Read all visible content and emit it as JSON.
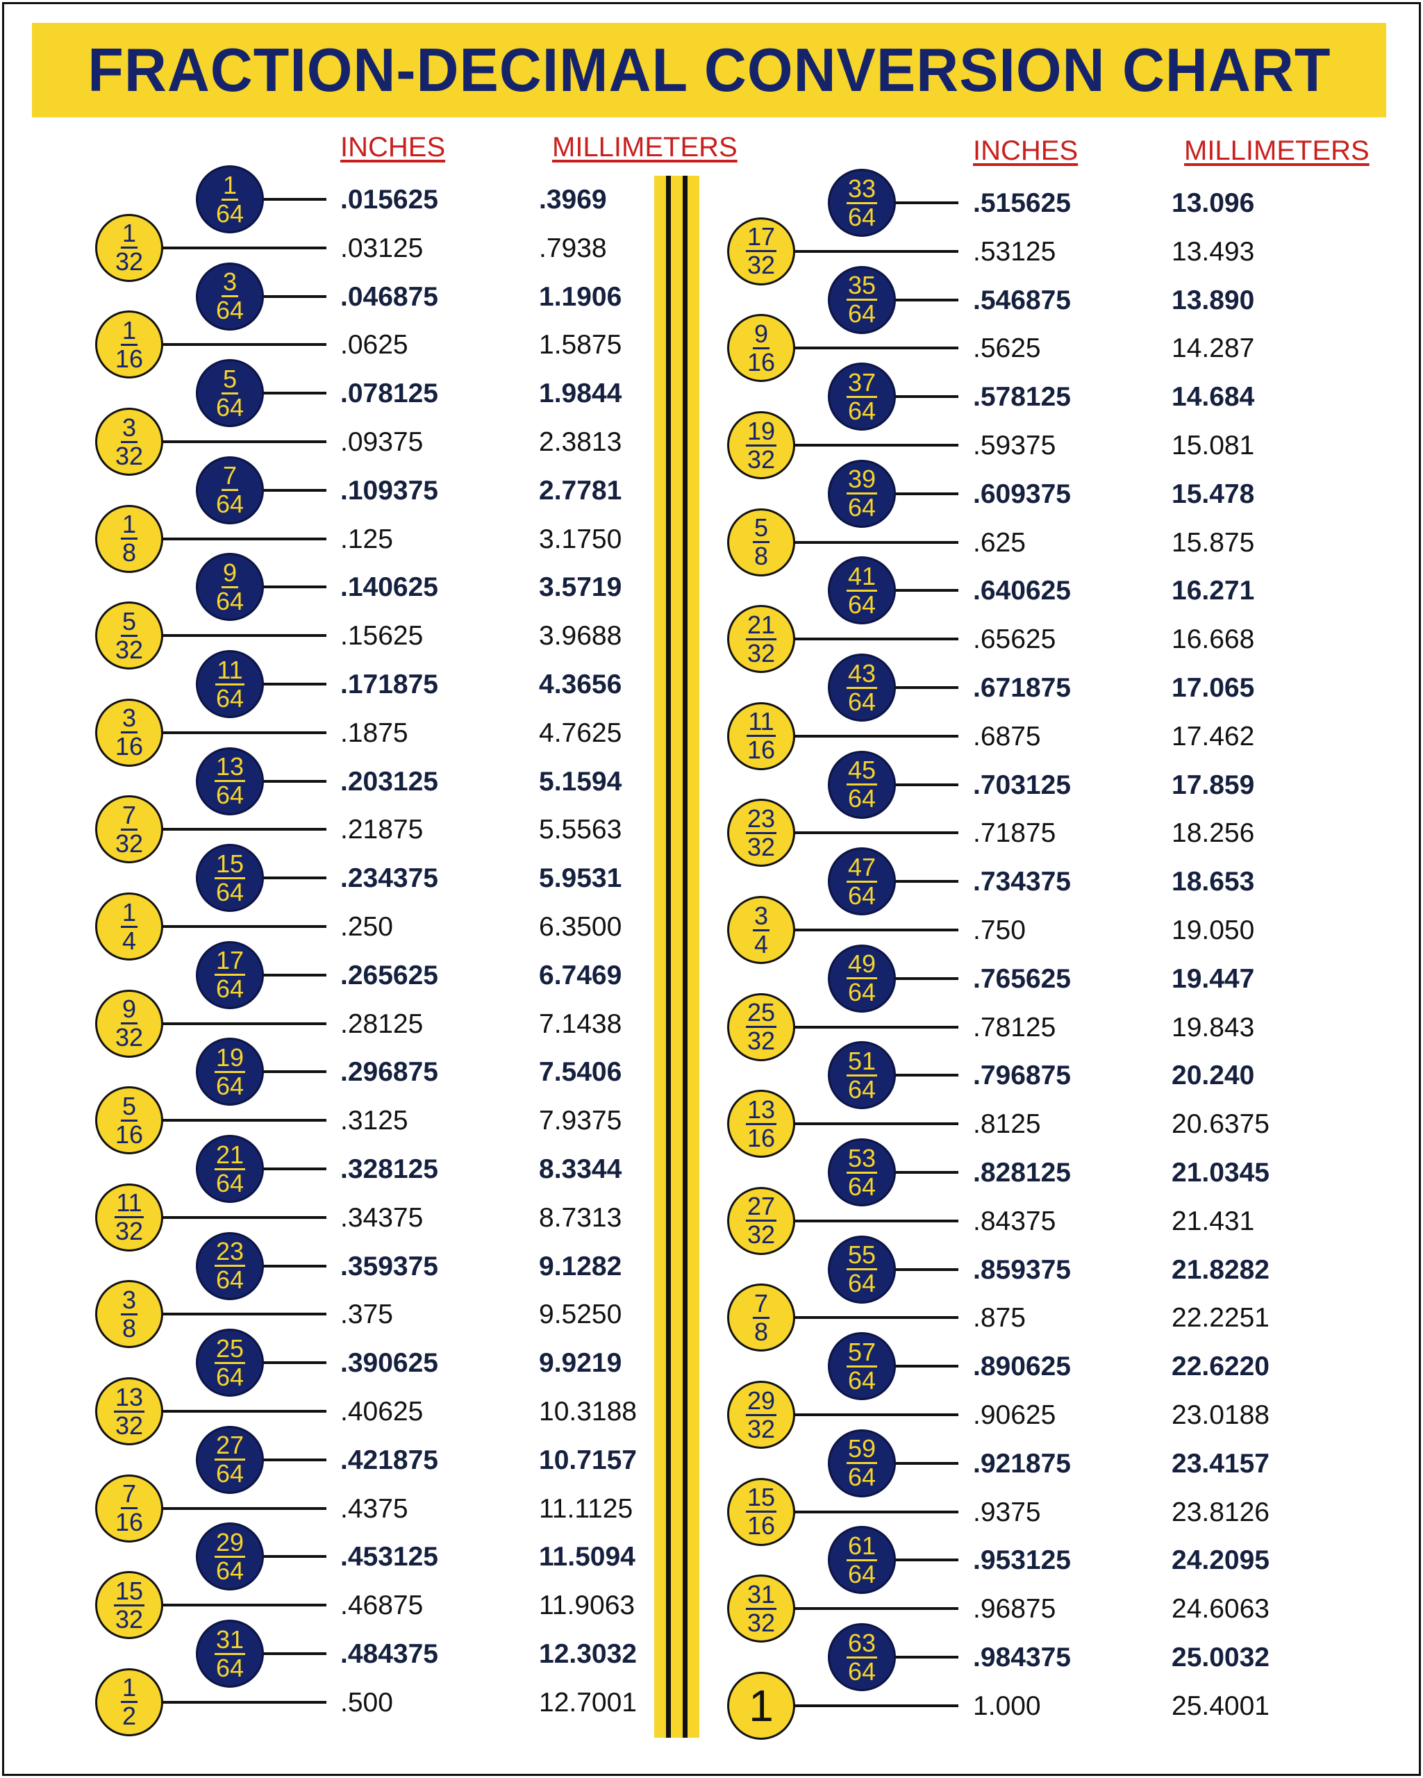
{
  "title": "FRACTION-DECIMAL CONVERSION CHART",
  "colors": {
    "navy": "#15236b",
    "yellow": "#f7d52a",
    "header_red": "#c8201e"
  },
  "headers": {
    "left_inches": "INCHES",
    "left_mm": "MILLIMETERS",
    "right_inches": "INCHES",
    "right_mm": "MILLIMETERS"
  },
  "left_rows": [
    {
      "num": "1",
      "den": "64",
      "inches": ".015625",
      "mm": ".3969"
    },
    {
      "num": "1",
      "den": "32",
      "inches": ".03125",
      "mm": ".7938"
    },
    {
      "num": "3",
      "den": "64",
      "inches": ".046875",
      "mm": "1.1906"
    },
    {
      "num": "1",
      "den": "16",
      "inches": ".0625",
      "mm": "1.5875"
    },
    {
      "num": "5",
      "den": "64",
      "inches": ".078125",
      "mm": "1.9844"
    },
    {
      "num": "3",
      "den": "32",
      "inches": ".09375",
      "mm": "2.3813"
    },
    {
      "num": "7",
      "den": "64",
      "inches": ".109375",
      "mm": "2.7781"
    },
    {
      "num": "1",
      "den": "8",
      "inches": ".125",
      "mm": "3.1750"
    },
    {
      "num": "9",
      "den": "64",
      "inches": ".140625",
      "mm": "3.5719"
    },
    {
      "num": "5",
      "den": "32",
      "inches": ".15625",
      "mm": "3.9688"
    },
    {
      "num": "11",
      "den": "64",
      "inches": ".171875",
      "mm": "4.3656"
    },
    {
      "num": "3",
      "den": "16",
      "inches": ".1875",
      "mm": "4.7625"
    },
    {
      "num": "13",
      "den": "64",
      "inches": ".203125",
      "mm": "5.1594"
    },
    {
      "num": "7",
      "den": "32",
      "inches": ".21875",
      "mm": "5.5563"
    },
    {
      "num": "15",
      "den": "64",
      "inches": ".234375",
      "mm": "5.9531"
    },
    {
      "num": "1",
      "den": "4",
      "inches": ".250",
      "mm": "6.3500"
    },
    {
      "num": "17",
      "den": "64",
      "inches": ".265625",
      "mm": "6.7469"
    },
    {
      "num": "9",
      "den": "32",
      "inches": ".28125",
      "mm": "7.1438"
    },
    {
      "num": "19",
      "den": "64",
      "inches": ".296875",
      "mm": "7.5406"
    },
    {
      "num": "5",
      "den": "16",
      "inches": ".3125",
      "mm": "7.9375"
    },
    {
      "num": "21",
      "den": "64",
      "inches": ".328125",
      "mm": "8.3344"
    },
    {
      "num": "11",
      "den": "32",
      "inches": ".34375",
      "mm": "8.7313"
    },
    {
      "num": "23",
      "den": "64",
      "inches": ".359375",
      "mm": "9.1282"
    },
    {
      "num": "3",
      "den": "8",
      "inches": ".375",
      "mm": "9.5250"
    },
    {
      "num": "25",
      "den": "64",
      "inches": ".390625",
      "mm": "9.9219"
    },
    {
      "num": "13",
      "den": "32",
      "inches": ".40625",
      "mm": "10.3188"
    },
    {
      "num": "27",
      "den": "64",
      "inches": ".421875",
      "mm": "10.7157"
    },
    {
      "num": "7",
      "den": "16",
      "inches": ".4375",
      "mm": "11.1125"
    },
    {
      "num": "29",
      "den": "64",
      "inches": ".453125",
      "mm": "11.5094"
    },
    {
      "num": "15",
      "den": "32",
      "inches": ".46875",
      "mm": "11.9063"
    },
    {
      "num": "31",
      "den": "64",
      "inches": ".484375",
      "mm": "12.3032"
    },
    {
      "num": "1",
      "den": "2",
      "inches": ".500",
      "mm": "12.7001"
    }
  ],
  "right_rows": [
    {
      "num": "33",
      "den": "64",
      "inches": ".515625",
      "mm": "13.096"
    },
    {
      "num": "17",
      "den": "32",
      "inches": ".53125",
      "mm": "13.493"
    },
    {
      "num": "35",
      "den": "64",
      "inches": ".546875",
      "mm": "13.890"
    },
    {
      "num": "9",
      "den": "16",
      "inches": ".5625",
      "mm": "14.287"
    },
    {
      "num": "37",
      "den": "64",
      "inches": ".578125",
      "mm": "14.684"
    },
    {
      "num": "19",
      "den": "32",
      "inches": ".59375",
      "mm": "15.081"
    },
    {
      "num": "39",
      "den": "64",
      "inches": ".609375",
      "mm": "15.478"
    },
    {
      "num": "5",
      "den": "8",
      "inches": ".625",
      "mm": "15.875"
    },
    {
      "num": "41",
      "den": "64",
      "inches": ".640625",
      "mm": "16.271"
    },
    {
      "num": "21",
      "den": "32",
      "inches": ".65625",
      "mm": "16.668"
    },
    {
      "num": "43",
      "den": "64",
      "inches": ".671875",
      "mm": "17.065"
    },
    {
      "num": "11",
      "den": "16",
      "inches": ".6875",
      "mm": "17.462"
    },
    {
      "num": "45",
      "den": "64",
      "inches": ".703125",
      "mm": "17.859"
    },
    {
      "num": "23",
      "den": "32",
      "inches": ".71875",
      "mm": "18.256"
    },
    {
      "num": "47",
      "den": "64",
      "inches": ".734375",
      "mm": "18.653"
    },
    {
      "num": "3",
      "den": "4",
      "inches": ".750",
      "mm": "19.050"
    },
    {
      "num": "49",
      "den": "64",
      "inches": ".765625",
      "mm": "19.447"
    },
    {
      "num": "25",
      "den": "32",
      "inches": ".78125",
      "mm": "19.843"
    },
    {
      "num": "51",
      "den": "64",
      "inches": ".796875",
      "mm": "20.240"
    },
    {
      "num": "13",
      "den": "16",
      "inches": ".8125",
      "mm": "20.6375"
    },
    {
      "num": "53",
      "den": "64",
      "inches": ".828125",
      "mm": "21.0345"
    },
    {
      "num": "27",
      "den": "32",
      "inches": ".84375",
      "mm": "21.431"
    },
    {
      "num": "55",
      "den": "64",
      "inches": ".859375",
      "mm": "21.8282"
    },
    {
      "num": "7",
      "den": "8",
      "inches": ".875",
      "mm": "22.2251"
    },
    {
      "num": "57",
      "den": "64",
      "inches": ".890625",
      "mm": "22.6220"
    },
    {
      "num": "29",
      "den": "32",
      "inches": ".90625",
      "mm": "23.0188"
    },
    {
      "num": "59",
      "den": "64",
      "inches": ".921875",
      "mm": "23.4157"
    },
    {
      "num": "15",
      "den": "16",
      "inches": ".9375",
      "mm": "23.8126"
    },
    {
      "num": "61",
      "den": "64",
      "inches": ".953125",
      "mm": "24.2095"
    },
    {
      "num": "31",
      "den": "32",
      "inches": ".96875",
      "mm": "24.6063"
    },
    {
      "num": "63",
      "den": "64",
      "inches": ".984375",
      "mm": "25.0032"
    },
    {
      "num": "1",
      "den": "",
      "inches": "1.000",
      "mm": "25.4001"
    }
  ]
}
